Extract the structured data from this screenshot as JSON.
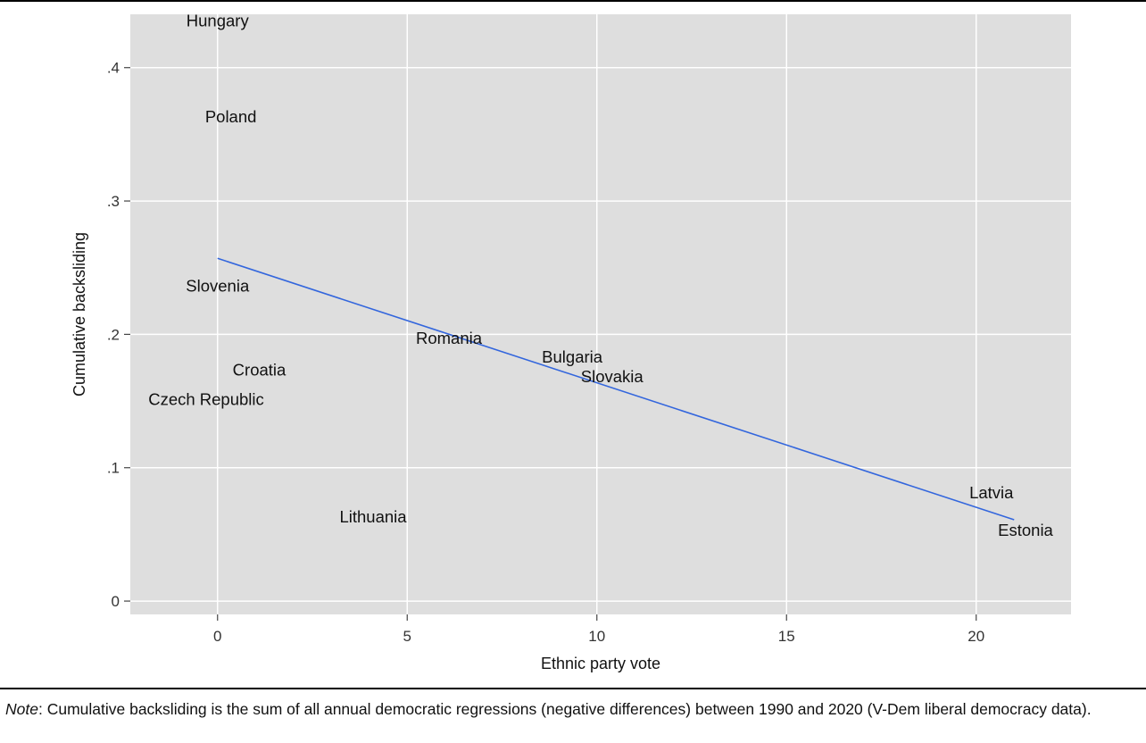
{
  "chart_data": {
    "type": "scatter",
    "title": "",
    "xlabel": "Ethnic party vote",
    "ylabel": "Cumulative backsliding",
    "xlim": [
      -2.3,
      22.5
    ],
    "ylim": [
      -0.01,
      0.44
    ],
    "x_ticks": [
      0,
      5,
      10,
      15,
      20
    ],
    "x_tick_labels": [
      "0",
      "5",
      "10",
      "15",
      "20"
    ],
    "y_ticks": [
      0,
      0.1,
      0.2,
      0.3,
      0.4
    ],
    "y_tick_labels": [
      "0",
      ".1",
      ".2",
      ".3",
      ".4"
    ],
    "grid": true,
    "marker": "country name labels",
    "points": [
      {
        "label": "Hungary",
        "x": 0,
        "y": 0.435
      },
      {
        "label": "Poland",
        "x": 0.35,
        "y": 0.363
      },
      {
        "label": "Slovenia",
        "x": 0,
        "y": 0.236
      },
      {
        "label": "Croatia",
        "x": 1.1,
        "y": 0.173
      },
      {
        "label": "Czech Republic",
        "x": -0.3,
        "y": 0.151
      },
      {
        "label": "Romania",
        "x": 6.1,
        "y": 0.197
      },
      {
        "label": "Bulgaria",
        "x": 9.35,
        "y": 0.183
      },
      {
        "label": "Slovakia",
        "x": 10.4,
        "y": 0.168
      },
      {
        "label": "Lithuania",
        "x": 4.1,
        "y": 0.063
      },
      {
        "label": "Latvia",
        "x": 20.4,
        "y": 0.081
      },
      {
        "label": "Estonia",
        "x": 21.3,
        "y": 0.053
      }
    ],
    "fit_line": {
      "x": [
        0,
        21
      ],
      "y": [
        0.257,
        0.061
      ],
      "color": "#3366dd"
    },
    "colors": {
      "plot_background": "#dedede",
      "grid": "#ffffff",
      "fit_line": "#3366dd"
    }
  },
  "note": {
    "label": "Note",
    "text": ": Cumulative backsliding is the sum of all annual democratic regressions (negative differences) between 1990 and 2020 (V-Dem liberal democracy data)."
  }
}
